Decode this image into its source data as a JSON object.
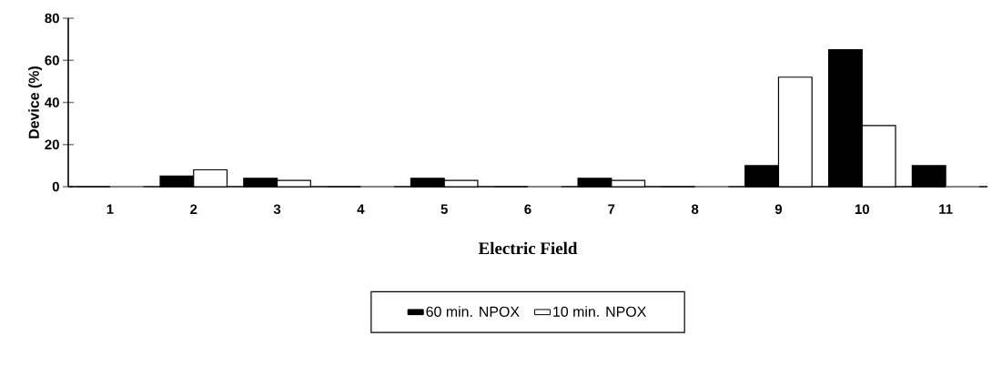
{
  "chart_data": {
    "type": "bar",
    "xlabel": "Electric Field",
    "ylabel": "Device (%)",
    "categories": [
      "1",
      "2",
      "3",
      "4",
      "5",
      "6",
      "7",
      "8",
      "9",
      "10",
      "11"
    ],
    "series": [
      {
        "name": "60 min. NPOX",
        "color": "#000000",
        "values": [
          0,
          5,
          4,
          0,
          4,
          0,
          4,
          0,
          10,
          65,
          10
        ]
      },
      {
        "name": "10 min. NPOX",
        "color": "#ffffff",
        "values": [
          0,
          8,
          3,
          0,
          3,
          0,
          3,
          0,
          52,
          29,
          0
        ]
      }
    ],
    "ylim": [
      0,
      80
    ],
    "yticks": [
      0,
      20,
      40,
      60,
      80
    ],
    "legend": "bottom",
    "grid": false
  }
}
